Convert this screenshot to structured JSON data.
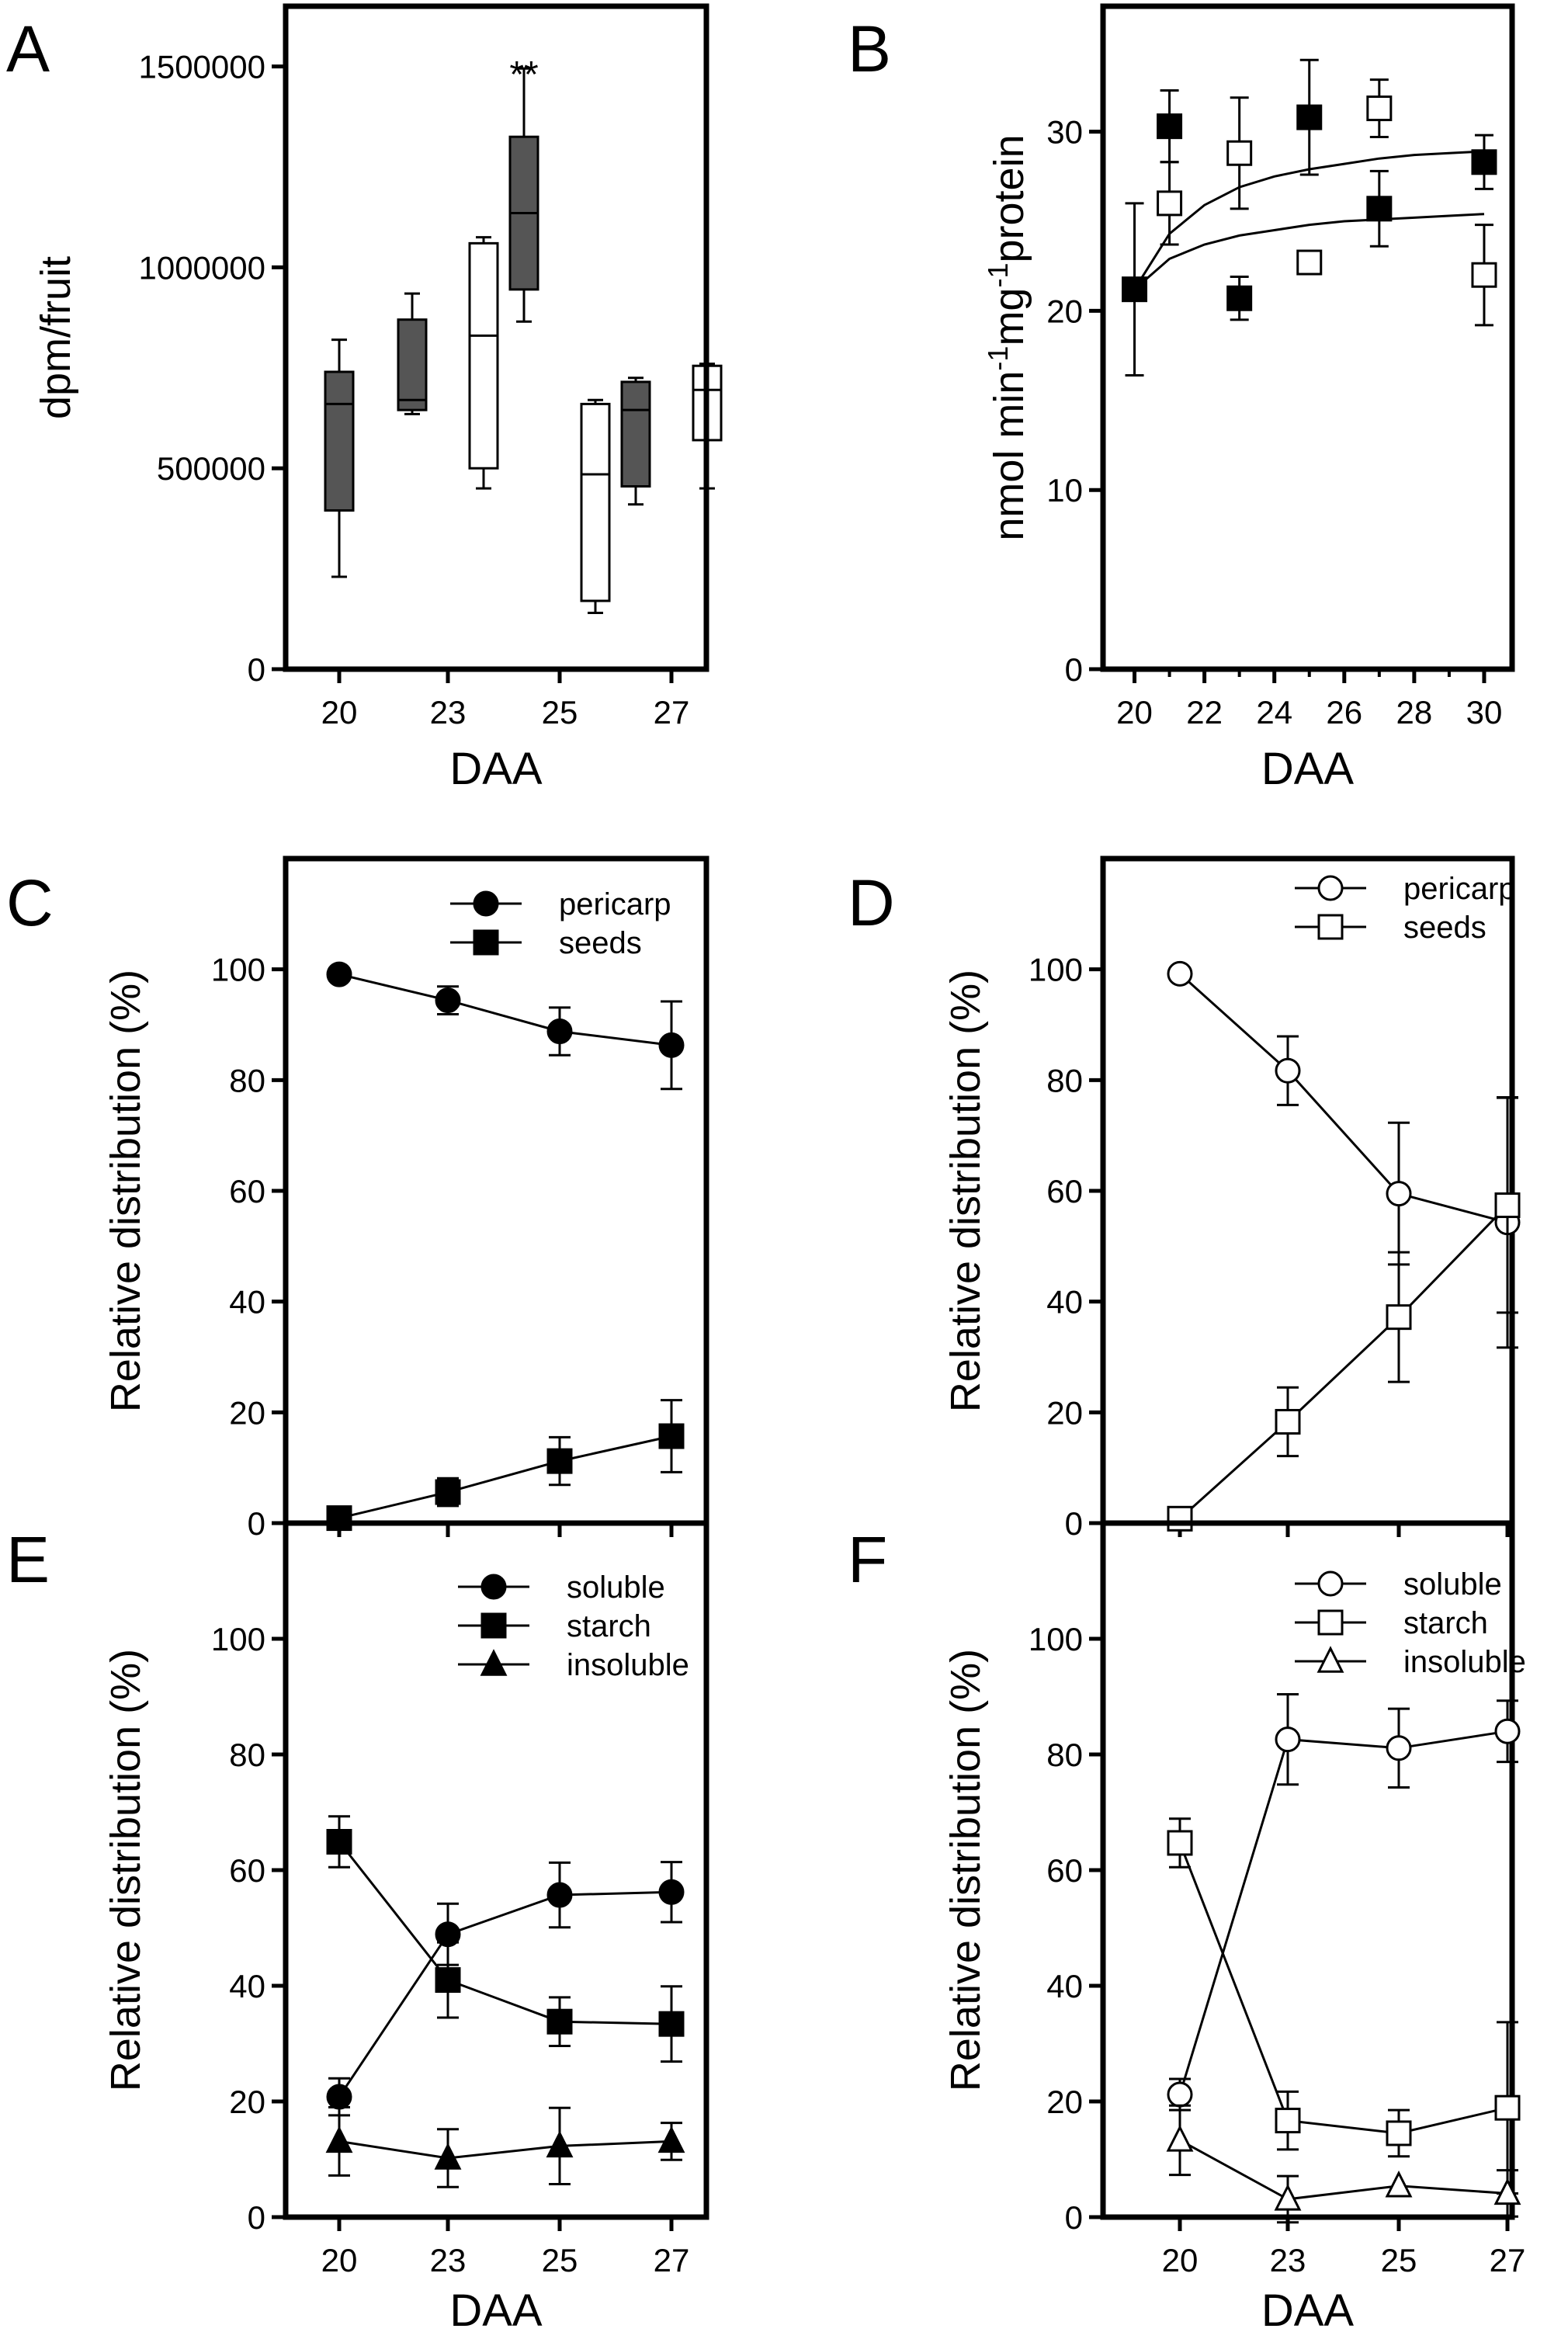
{
  "panels": {
    "A": {
      "letter": "A"
    },
    "B": {
      "letter": "B"
    },
    "C": {
      "letter": "C"
    },
    "D": {
      "letter": "D"
    },
    "E": {
      "letter": "E"
    },
    "F": {
      "letter": "F"
    }
  },
  "chart_data": [
    {
      "id": "A",
      "type": "box",
      "ylabel": "dpm/fruit",
      "xlabel": "DAA",
      "categories": [
        "20",
        "23",
        "25",
        "27"
      ],
      "ylim": [
        0,
        1650000
      ],
      "yticks": [
        0,
        500000,
        1000000,
        1500000
      ],
      "yticklabels": [
        "0",
        "500000",
        "1000000",
        "1500000"
      ],
      "annotations": [
        {
          "text": "**",
          "category": "25"
        }
      ],
      "colors": {
        "dark": "#555555",
        "light": "#ffffff"
      },
      "boxes": [
        {
          "category": "20",
          "fill": "dark",
          "min": 230000,
          "q1": 395000,
          "median": 660000,
          "q3": 740000,
          "max": 820000
        },
        {
          "category": "23",
          "fill": "dark",
          "min": 635000,
          "q1": 645000,
          "median": 670000,
          "q3": 870000,
          "max": 935000
        },
        {
          "category": "23",
          "fill": "light",
          "min": 450000,
          "q1": 500000,
          "median": 830000,
          "q3": 1060000,
          "max": 1075000
        },
        {
          "category": "25",
          "fill": "dark",
          "min": 865000,
          "q1": 945000,
          "median": 1135000,
          "q3": 1325000,
          "max": 1495000
        },
        {
          "category": "25",
          "fill": "light",
          "min": 140000,
          "q1": 170000,
          "median": 485000,
          "q3": 660000,
          "max": 670000
        },
        {
          "category": "27",
          "fill": "dark",
          "min": 410000,
          "q1": 455000,
          "median": 645000,
          "q3": 715000,
          "max": 725000
        },
        {
          "category": "27",
          "fill": "light",
          "min": 450000,
          "q1": 570000,
          "median": 695000,
          "q3": 755000,
          "max": 760000
        }
      ]
    },
    {
      "id": "B",
      "type": "scatter",
      "ylabel": "nmol min-1mg-1protein",
      "ylabel_parts": [
        "nmol min",
        "-1",
        "mg",
        "-1",
        "protein"
      ],
      "xlabel": "DAA",
      "xlim": [
        19.1,
        30.8
      ],
      "ylim": [
        0,
        37
      ],
      "xticks": [
        20,
        22,
        24,
        26,
        28,
        30
      ],
      "yticks": [
        0,
        10,
        20,
        30
      ],
      "series": [
        {
          "marker": "filled-square",
          "x": [
            20,
            21,
            23,
            25,
            27,
            30
          ],
          "y": [
            21.2,
            30.3,
            20.7,
            30.8,
            25.7,
            28.3
          ],
          "err": [
            4.8,
            2.0,
            1.2,
            3.2,
            2.1,
            1.5
          ]
        },
        {
          "marker": "open-square",
          "x": [
            21,
            23,
            25,
            27,
            30
          ],
          "y": [
            26.0,
            28.8,
            22.7,
            31.3,
            22.0
          ],
          "err": [
            2.3,
            3.1,
            0,
            1.6,
            2.8
          ]
        }
      ],
      "fit_curves": [
        {
          "x": [
            20,
            21,
            22,
            23,
            24,
            25,
            26,
            27,
            28,
            29,
            30
          ],
          "y": [
            21.2,
            24.3,
            25.9,
            26.9,
            27.5,
            27.9,
            28.2,
            28.5,
            28.7,
            28.8,
            28.9
          ]
        },
        {
          "x": [
            20,
            21,
            22,
            23,
            24,
            25,
            26,
            27,
            28,
            29,
            30
          ],
          "y": [
            21.2,
            22.9,
            23.7,
            24.2,
            24.5,
            24.8,
            25.0,
            25.1,
            25.2,
            25.3,
            25.4
          ]
        }
      ]
    },
    {
      "id": "C",
      "type": "line",
      "ylabel": "Relative distribution (%)",
      "xlabel": "",
      "x": [
        "20",
        "23",
        "25",
        "27"
      ],
      "ylim": [
        0,
        120
      ],
      "yticks": [
        0,
        20,
        40,
        60,
        80,
        100
      ],
      "series": [
        {
          "name": "pericarp",
          "marker": "filled-circle",
          "y": [
            99.1,
            94.4,
            88.8,
            86.3
          ],
          "err": [
            0,
            2.5,
            4.3,
            7.9
          ]
        },
        {
          "name": "seeds",
          "marker": "filled-square",
          "y": [
            0.9,
            5.6,
            11.2,
            15.7
          ],
          "err": [
            0,
            2.5,
            4.3,
            6.5
          ]
        }
      ]
    },
    {
      "id": "D",
      "type": "line",
      "ylabel": "Relative distribution (%)",
      "xlabel": "",
      "x": [
        "20",
        "23",
        "25",
        "27"
      ],
      "ylim": [
        0,
        120
      ],
      "yticks": [
        0,
        20,
        40,
        60,
        80,
        100
      ],
      "series": [
        {
          "name": "pericarp",
          "marker": "open-circle",
          "y": [
            99.2,
            81.7,
            59.5,
            54.3
          ],
          "err": [
            0,
            6.2,
            12.8,
            22.6
          ]
        },
        {
          "name": "seeds",
          "marker": "open-square",
          "y": [
            0.8,
            18.3,
            37.2,
            57.4
          ],
          "err": [
            0,
            6.2,
            11.7,
            19.4
          ]
        }
      ]
    },
    {
      "id": "E",
      "type": "line",
      "ylabel": "Relative distribution (%)",
      "xlabel": "DAA",
      "x": [
        "20",
        "23",
        "25",
        "27"
      ],
      "ylim": [
        0,
        120
      ],
      "yticks": [
        0,
        20,
        40,
        60,
        80,
        100
      ],
      "series": [
        {
          "name": "soluble",
          "marker": "filled-circle",
          "y": [
            20.8,
            48.9,
            55.7,
            56.2
          ],
          "err": [
            3.2,
            5.3,
            5.6,
            5.2
          ]
        },
        {
          "name": "starch",
          "marker": "filled-square",
          "y": [
            64.9,
            41.0,
            33.8,
            33.4
          ],
          "err": [
            4.4,
            6.5,
            4.2,
            6.5
          ]
        },
        {
          "name": "insoluble",
          "marker": "filled-triangle",
          "y": [
            13.1,
            10.2,
            12.3,
            13.1
          ],
          "err": [
            5.9,
            5.0,
            6.6,
            3.2
          ]
        }
      ]
    },
    {
      "id": "F",
      "type": "line",
      "ylabel": "Relative distribution (%)",
      "xlabel": "DAA",
      "x": [
        "20",
        "23",
        "25",
        "27"
      ],
      "ylim": [
        0,
        120
      ],
      "yticks": [
        0,
        20,
        40,
        60,
        80,
        100
      ],
      "series": [
        {
          "name": "soluble",
          "marker": "open-circle",
          "y": [
            21.2,
            82.6,
            81.1,
            84.0
          ],
          "err": [
            2.7,
            7.8,
            6.8,
            5.3
          ]
        },
        {
          "name": "starch",
          "marker": "open-square",
          "y": [
            64.7,
            16.7,
            14.5,
            18.9
          ],
          "err": [
            4.2,
            5.0,
            4.0,
            14.8
          ]
        },
        {
          "name": "insoluble",
          "marker": "open-triangle",
          "y": [
            13.3,
            3.1,
            5.4,
            4.1
          ],
          "err": [
            6.0,
            4.0,
            0,
            4.0
          ]
        }
      ]
    }
  ]
}
